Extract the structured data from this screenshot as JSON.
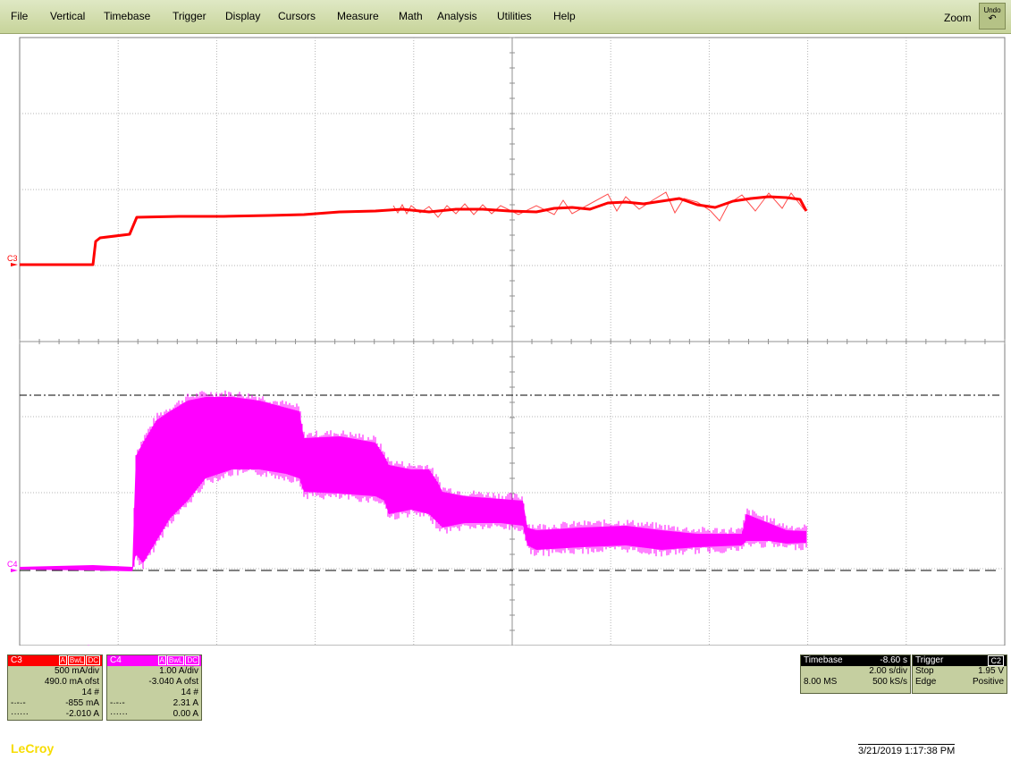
{
  "menu": [
    "File",
    "Vertical",
    "Timebase",
    "Trigger",
    "Display",
    "Cursors",
    "Measure",
    "Math",
    "Analysis",
    "Utilities",
    "Help"
  ],
  "zoom_label": "Zoom",
  "undo_label": "Undo",
  "colors": {
    "c3": "#ff0000",
    "c4": "#ff00ff",
    "grid": "#a0a0a0",
    "menubar": "#d4ddb0"
  },
  "channels": {
    "c3": {
      "name": "C3",
      "coupling_badges": [
        "A",
        "BwL",
        "DC"
      ],
      "scale": "500 mA/div",
      "offset": "490.0 mA ofst",
      "sweeps": "14 #",
      "cursor1": "-855 mA",
      "cursor2": "-2.010 A",
      "trace_label": "C3"
    },
    "c4": {
      "name": "C4",
      "coupling_badges": [
        "A",
        "BwL",
        "DC"
      ],
      "scale": "1.00 A/div",
      "offset": "-3.040 A ofst",
      "sweeps": "14 #",
      "cursor1": "2.31 A",
      "cursor2": "0.00 A",
      "trace_label": "C4"
    }
  },
  "timebase": {
    "label": "Timebase",
    "delay": "-8.60 s",
    "scale": "2.00 s/div",
    "memory": "8.00 MS",
    "sample_rate": "500 kS/s"
  },
  "trigger": {
    "label": "Trigger",
    "source": "C2",
    "mode": "Stop",
    "level": "1.95 V",
    "type": "Edge",
    "slope": "Positive"
  },
  "brand": "LeCroy",
  "datetime": "3/21/2019 1:17:38 PM"
}
